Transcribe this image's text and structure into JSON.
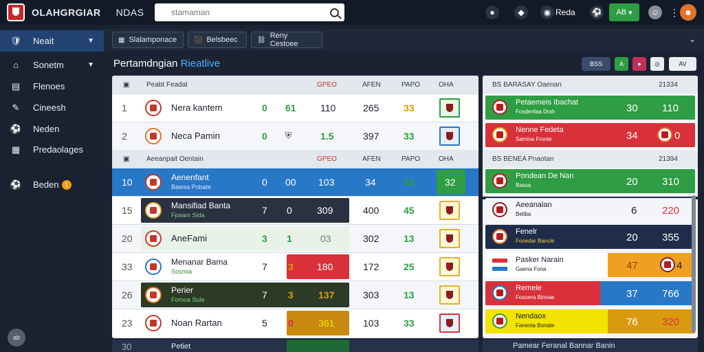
{
  "topbar": {
    "brand": "OLAHGRGIAR",
    "brand2": "NDAS",
    "search_placeholder": "stamaman",
    "account_label": "Reda",
    "button_label": "AB"
  },
  "sidebar": {
    "items": [
      {
        "label": "Neait",
        "icon": "shield-icon"
      },
      {
        "label": "Sonetm",
        "icon": "home-icon"
      },
      {
        "label": "Flenoes",
        "icon": "chart-icon"
      },
      {
        "label": "Cineesh",
        "icon": "whistle-icon"
      },
      {
        "label": "Neden",
        "icon": "ball-icon"
      },
      {
        "label": "Predaolages",
        "icon": "table-icon"
      },
      {
        "label": "Beden",
        "icon": "ball-icon",
        "badge": "1"
      }
    ],
    "avatar_label": "ab"
  },
  "tabs": [
    {
      "label": "Slalamponace",
      "icon": "grid-icon"
    },
    {
      "label": "Belsbeec",
      "icon": "tag-icon"
    },
    {
      "label": "Reny Cestoee",
      "icon": "link-icon"
    }
  ],
  "page_title_pre": "Pertamdngian",
  "page_title_hl": "Rieatlive",
  "header_buttons": [
    "BSS",
    "A",
    "AV"
  ],
  "left_panel": {
    "section1": {
      "title": "Peabt Feadal",
      "cols": [
        "GPEO",
        "AFEN",
        "PAPO",
        "OHA"
      ]
    },
    "section2": {
      "title": "Aeeanpait Oentain",
      "cols": [
        "GPEO",
        "AFEN",
        "PAPO",
        "OHA"
      ]
    },
    "rows": [
      {
        "rank": "1",
        "team": "Nera kantem",
        "sub": "",
        "a": "0",
        "b": "61",
        "c": "110",
        "d": "265",
        "e": "33"
      },
      {
        "rank": "2",
        "team": "Neca Pamin",
        "sub": "",
        "a": "0",
        "b": "",
        "c": "1.5",
        "d": "397",
        "e": "33"
      },
      {
        "rank": "10",
        "team": "Aenenfant",
        "sub": "Bawsa Pobate",
        "a": "0",
        "b": "00",
        "c": "103",
        "d": "34",
        "e": "32"
      },
      {
        "rank": "15",
        "team": "Mansifiad Banta",
        "sub": "Fpaam Sida",
        "a": "7",
        "b": "0",
        "c": "309",
        "d": "400",
        "e": "45"
      },
      {
        "rank": "20",
        "team": "AneFami",
        "sub": "",
        "a": "3",
        "b": "1",
        "c": "03",
        "d": "302",
        "e": "13"
      },
      {
        "rank": "33",
        "team": "Menanar Bama",
        "sub": "Sosmia",
        "a": "7",
        "b": "3",
        "c": "180",
        "d": "172",
        "e": "25"
      },
      {
        "rank": "26",
        "team": "Perier",
        "sub": "Fomoa Sule",
        "a": "7",
        "b": "3",
        "c": "137",
        "d": "303",
        "e": "13"
      },
      {
        "rank": "23",
        "team": "Noan Rartan",
        "sub": "",
        "a": "5",
        "b": "0",
        "c": "361",
        "d": "103",
        "e": "33"
      },
      {
        "rank": "30",
        "team": "Petiet",
        "sub": "",
        "a": "",
        "b": "",
        "c": "",
        "d": "",
        "e": ""
      }
    ]
  },
  "right_panel": {
    "section1": {
      "title": "BS BARASAY Oaenan",
      "count": "21334"
    },
    "section2": {
      "title": "BS BENEA Pnaotan",
      "count": "21394"
    },
    "rows": [
      {
        "name": "Petaemeis Ibachat",
        "sub": "Fosdenfaa Drah",
        "v1": "30",
        "v2": "110"
      },
      {
        "name": "Nenne Fedeta",
        "sub": "Samina Fronte",
        "v1": "34",
        "v2": "0"
      },
      {
        "name": "Pondean De Nan",
        "sub": "Bassa",
        "v1": "20",
        "v2": "310"
      },
      {
        "name": "Aeeanalan",
        "sub": "Beliba",
        "v1": "6",
        "v2": "220"
      },
      {
        "name": "Fenelr",
        "sub": "Fonedar Bancle",
        "v1": "20",
        "v2": "355"
      },
      {
        "name": "Pasker Narain",
        "sub": "Gaena Fona",
        "v1": "47",
        "v2": "4"
      },
      {
        "name": "Remele",
        "sub": "Fosoera Binoae",
        "v1": "37",
        "v2": "766"
      },
      {
        "name": "Nendaox",
        "sub": "Fanenla Bonate",
        "v1": "76",
        "v2": "320"
      },
      {
        "name": "Pamear Feranal Bannar Banin",
        "sub": "",
        "v1": "",
        "v2": ""
      }
    ]
  },
  "colors": {
    "topbar": "#121a27",
    "sidebar_active": "#224272",
    "row_blue": "#2878c8",
    "row_dark": "#2a3140",
    "green": "#2e9d43",
    "red": "#d9303a",
    "yellow": "#f2e300",
    "orange": "#e8a020"
  }
}
